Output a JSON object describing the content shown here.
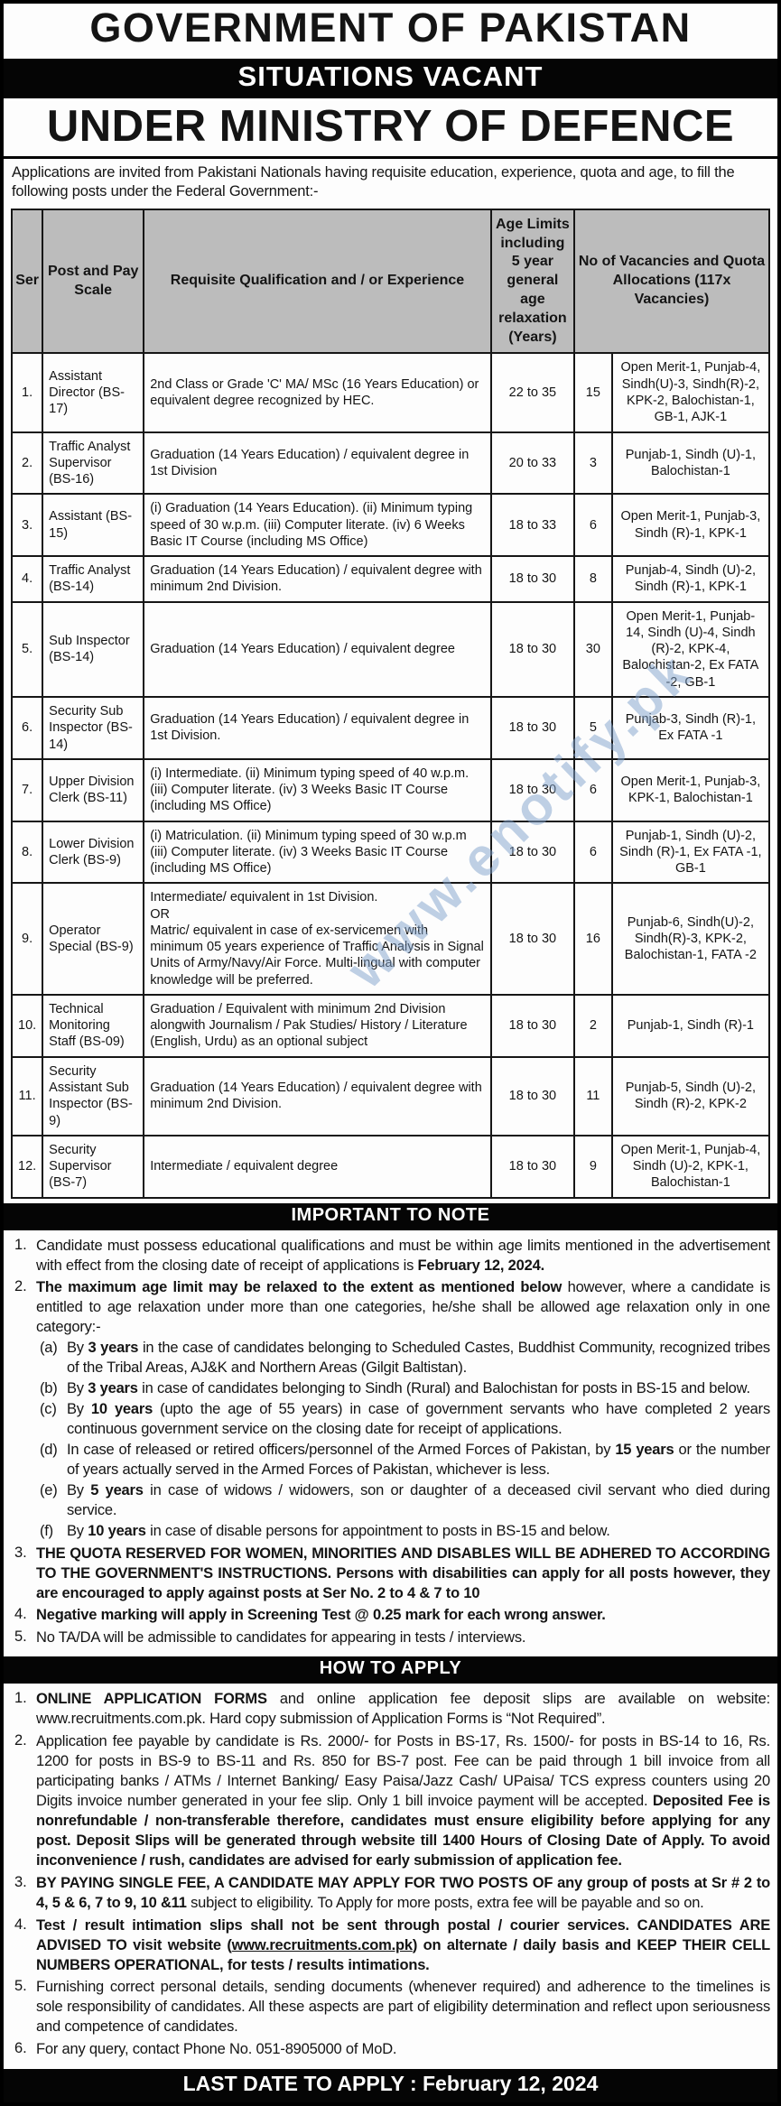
{
  "titles": {
    "government": "GOVERNMENT OF PAKISTAN",
    "situations": "SITUATIONS VACANT",
    "ministry": "UNDER MINISTRY OF DEFENCE"
  },
  "intro": "Applications are invited from Pakistani Nationals having requisite education, experience, quota and age, to fill the following posts under the Federal Government:-",
  "watermark": "www.enotify.pk",
  "table": {
    "headers": {
      "ser": "Ser",
      "post": "Post and Pay Scale",
      "qualification": "Requisite Qualification and / or Experience",
      "age": "Age Limits including 5 year general age relaxation (Years)",
      "vacancies": "No of Vacancies and Quota Allocations (117x Vacancies)"
    },
    "rows": [
      {
        "ser": "1.",
        "post": "Assistant Director (BS-17)",
        "qualification": "2nd Class or Grade 'C' MA/ MSc (16 Years Education) or equivalent degree recognized by HEC.",
        "age": "22 to 35",
        "count": "15",
        "quota": "Open Merit-1, Punjab-4, Sindh(U)-3, Sindh(R)-2, KPK-2, Balochistan-1, GB-1, AJK-1"
      },
      {
        "ser": "2.",
        "post": "Traffic Analyst Supervisor (BS-16)",
        "qualification": "Graduation  (14 Years Education) / equivalent degree in 1st Division",
        "age": "20 to 33",
        "count": "3",
        "quota": "Punjab-1, Sindh (U)-1, Balochistan-1"
      },
      {
        "ser": "3.",
        "post": "Assistant (BS-15)",
        "qualification": "(i) Graduation (14 Years Education). (ii) Minimum typing speed of 30 w.p.m. (iii) Computer literate. (iv)  6 Weeks Basic IT Course (including MS Office)",
        "age": "18 to 33",
        "count": "6",
        "quota": "Open Merit-1, Punjab-3, Sindh (R)-1, KPK-1"
      },
      {
        "ser": "4.",
        "post": "Traffic Analyst (BS-14)",
        "qualification": "Graduation (14 Years Education) / equivalent degree with minimum 2nd Division.",
        "age": "18 to 30",
        "count": "8",
        "quota": "Punjab-4, Sindh (U)-2, Sindh (R)-1, KPK-1"
      },
      {
        "ser": "5.",
        "post": "Sub Inspector (BS-14)",
        "qualification": "Graduation (14 Years Education) / equivalent degree",
        "age": "18 to 30",
        "count": "30",
        "quota": "Open Merit-1, Punjab-14, Sindh (U)-4, Sindh (R)-2, KPK-4, Balochistan-2, Ex FATA -2, GB-1"
      },
      {
        "ser": "6.",
        "post": "Security Sub Inspector (BS-14)",
        "qualification": "Graduation (14 Years Education) / equivalent degree in 1st Division.",
        "age": "18 to 30",
        "count": "5",
        "quota": "Punjab-3, Sindh (R)-1, Ex FATA -1"
      },
      {
        "ser": "7.",
        "post": "Upper Division Clerk (BS-11)",
        "qualification": "(i) Intermediate. (ii) Minimum typing speed of 40 w.p.m. (iii) Computer literate. (iv) 3 Weeks Basic IT Course (including MS Office)",
        "age": "18 to 30",
        "count": "6",
        "quota": "Open Merit-1, Punjab-3, KPK-1, Balochistan-1"
      },
      {
        "ser": "8.",
        "post": "Lower Division Clerk (BS-9)",
        "qualification": "(i) Matriculation. (ii) Minimum typing speed of 30 w.p.m (iii) Computer literate. (iv) 3 Weeks Basic IT Course (including MS Office)",
        "age": "18 to 30",
        "count": "6",
        "quota": "Punjab-1, Sindh (U)-2, Sindh (R)-1, Ex FATA -1, GB-1"
      },
      {
        "ser": "9.",
        "post": "Operator Special (BS-9)",
        "qualification": "Intermediate/ equivalent in 1st Division.\nOR\nMatric/ equivalent in case of ex-servicemen with minimum 05 years experience of Traffic Analysis in Signal Units of Army/Navy/Air Force. Multi-lingual with computer knowledge will be preferred.",
        "age": "18 to 30",
        "count": "16",
        "quota": "Punjab-6, Sindh(U)-2, Sindh(R)-3, KPK-2, Balochistan-1, FATA -2"
      },
      {
        "ser": "10.",
        "post": "Technical Monitoring Staff (BS-09)",
        "qualification": "Graduation / Equivalent with minimum 2nd Division alongwith Journalism / Pak Studies/ History / Literature (English, Urdu) as an optional subject",
        "age": "18 to 30",
        "count": "2",
        "quota": "Punjab-1, Sindh (R)-1"
      },
      {
        "ser": "11.",
        "post": "Security Assistant Sub Inspector (BS-9)",
        "qualification": "Graduation (14 Years Education) / equivalent degree with minimum 2nd Division.",
        "age": "18 to 30",
        "count": "11",
        "quota": "Punjab-5, Sindh (U)-2, Sindh (R)-2, KPK-2"
      },
      {
        "ser": "12.",
        "post": "Security Supervisor (BS-7)",
        "qualification": "Intermediate / equivalent degree",
        "age": "18 to 30",
        "count": "9",
        "quota": "Open Merit-1, Punjab-4, Sindh (U)-2, KPK-1, Balochistan-1"
      }
    ]
  },
  "notes": {
    "title": "IMPORTANT TO NOTE",
    "items": [
      {
        "num": "1.",
        "segments": [
          {
            "t": "Candidate must possess educational qualifications and must be within age limits mentioned in the advertisement with effect from the closing date of receipt of applications is ",
            "b": false
          },
          {
            "t": "February 12, 2024.",
            "b": true
          }
        ]
      },
      {
        "num": "2.",
        "segments": [
          {
            "t": "The maximum age limit may be relaxed to the extent as mentioned below ",
            "b": true
          },
          {
            "t": "however, where a candidate is entitled to age relaxation under more than one categories, he/she shall be allowed age relaxation only in one category:-",
            "b": false
          }
        ],
        "subs": [
          {
            "label": "(a)",
            "segments": [
              {
                "t": "By ",
                "b": false
              },
              {
                "t": "3 years",
                "b": true
              },
              {
                "t": " in the case of candidates belonging to Scheduled Castes, Buddhist Community, recognized tribes of the Tribal Areas, AJ&K and Northern Areas (Gilgit Baltistan).",
                "b": false
              }
            ]
          },
          {
            "label": "(b)",
            "segments": [
              {
                "t": "By ",
                "b": false
              },
              {
                "t": "3 years",
                "b": true
              },
              {
                "t": " in case of candidates belonging to Sindh (Rural) and Balochistan for posts in BS-15 and below.",
                "b": false
              }
            ]
          },
          {
            "label": "(c)",
            "segments": [
              {
                "t": "By ",
                "b": false
              },
              {
                "t": "10 years",
                "b": true
              },
              {
                "t": " (upto the age of 55 years) in case of government servants who have completed 2 years continuous government service on the closing date for receipt of applications.",
                "b": false
              }
            ]
          },
          {
            "label": "(d)",
            "segments": [
              {
                "t": "In case of released or retired officers/personnel of the Armed Forces of Pakistan, by ",
                "b": false
              },
              {
                "t": "15 years",
                "b": true
              },
              {
                "t": " or the number of years actually served in the Armed Forces of Pakistan, whichever is less.",
                "b": false
              }
            ]
          },
          {
            "label": "(e)",
            "segments": [
              {
                "t": "By ",
                "b": false
              },
              {
                "t": "5 years",
                "b": true
              },
              {
                "t": " in case of widows / widowers, son or daughter of a deceased civil servant who died during service.",
                "b": false
              }
            ]
          },
          {
            "label": "(f)",
            "segments": [
              {
                "t": "By ",
                "b": false
              },
              {
                "t": "10 years",
                "b": true
              },
              {
                "t": " in case of disable persons for appointment to posts in BS-15 and below.",
                "b": false
              }
            ]
          }
        ]
      },
      {
        "num": "3.",
        "segments": [
          {
            "t": "THE QUOTA RESERVED FOR WOMEN, MINORITIES AND DISABLES WILL BE ADHERED TO ACCORDING TO THE GOVERNMENT'S INSTRUCTIONS. Persons with disabilities can apply for all posts however, they are encouraged to apply against posts at Ser No. 2 to 4 & 7 to 10",
            "b": true
          }
        ]
      },
      {
        "num": "4.",
        "segments": [
          {
            "t": "Negative marking will apply in Screening Test @ 0.25 mark for each wrong answer.",
            "b": true
          }
        ]
      },
      {
        "num": "5.",
        "segments": [
          {
            "t": "No TA/DA will be admissible to candidates for appearing in tests / interviews.",
            "b": false
          }
        ]
      }
    ]
  },
  "apply": {
    "title": "HOW TO APPLY",
    "items": [
      {
        "num": "1.",
        "segments": [
          {
            "t": "ONLINE APPLICATION FORMS",
            "b": true
          },
          {
            "t": " and online application fee deposit slips are available on website: www.recruitments.com.pk. Hard copy submission of Application Forms is “Not Required”.",
            "b": false
          }
        ]
      },
      {
        "num": "2.",
        "segments": [
          {
            "t": "Application fee payable by candidate is Rs. 2000/- for Posts in BS-17, Rs. 1500/- for posts in BS-14 to 16, Rs. 1200 for posts in BS-9 to BS-11 and Rs. 850 for BS-7 post. Fee can be paid through 1 bill invoice from all participating banks / ATMs / Internet Banking/ Easy Paisa/Jazz Cash/ UPaisa/ TCS express counters using 20 Digits invoice number generated in your fee slip. Only 1 bill invoice payment will be accepted. ",
            "b": false
          },
          {
            "t": "Deposited Fee is nonrefundable / non-transferable therefore, candidates must ensure eligibility before applying for any post. Deposit Slips will be generated through website till 1400 Hours of Closing Date of Apply. To avoid inconvenience / rush, candidates are advised for early submission of application fee.",
            "b": true
          }
        ]
      },
      {
        "num": "3.",
        "segments": [
          {
            "t": "BY PAYING SINGLE FEE, A CANDIDATE MAY APPLY FOR TWO POSTS OF any group of posts at Sr # 2 to 4, 5 & 6, 7 to 9, 10 &11",
            "b": true
          },
          {
            "t": " subject to eligibility. To Apply for more posts, extra fee will be payable and so on.",
            "b": false
          }
        ]
      },
      {
        "num": "4.",
        "segments": [
          {
            "t": "Test / result intimation slips shall not be sent through postal / courier services. CANDIDATES ARE ADVISED TO visit website (",
            "b": true
          },
          {
            "t": "www.recruitments.com.pk",
            "b": true,
            "u": true
          },
          {
            "t": ") on alternate / daily basis and KEEP THEIR CELL NUMBERS OPERATIONAL, for tests / results intimations.",
            "b": true
          }
        ]
      },
      {
        "num": "5.",
        "segments": [
          {
            "t": "Furnishing correct personal details, sending documents (whenever required) and adherence to the timelines is sole responsibility of candidates. All these aspects are part of eligibility determination and reflect upon seriousness and competence of candidates.",
            "b": false
          }
        ]
      },
      {
        "num": "6.",
        "segments": [
          {
            "t": "For any query, contact Phone No. 051-8905000 of MoD.",
            "b": false
          }
        ]
      }
    ]
  },
  "footer": {
    "last_date_label": "LAST DATE TO APPLY : February 12, 2024"
  }
}
